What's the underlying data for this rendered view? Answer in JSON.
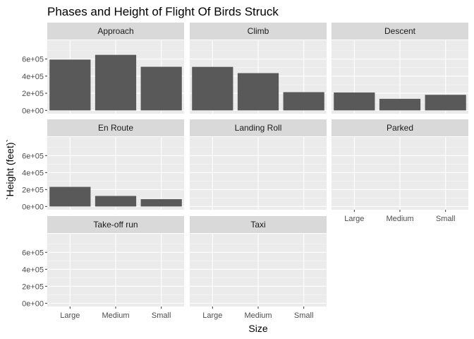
{
  "chart_data": {
    "type": "bar",
    "title": "Phases and Height of Flight Of Birds Struck",
    "xlabel": "Size",
    "ylabel": "`Height (feet)`",
    "categories": [
      "Large",
      "Medium",
      "Small"
    ],
    "ylim": [
      0,
      780000
    ],
    "y_ticks": [
      0,
      200000,
      400000,
      600000
    ],
    "y_tick_labels": [
      "0e+00",
      "2e+05",
      "4e+05",
      "6e+05"
    ],
    "facet_layout": "3 columns x 3 rows, facet_wrap with free x axis",
    "grid": true,
    "colors": {
      "panel_background": "#ebebeb",
      "strip_background": "#d9d9d9",
      "bar_fill": "#595959",
      "grid_major": "#ffffff",
      "grid_minor": "#f5f5f5"
    },
    "facets": [
      {
        "name": "Approach",
        "values": [
          593000,
          648000,
          509000
        ]
      },
      {
        "name": "Climb",
        "values": [
          508000,
          435000,
          213000
        ]
      },
      {
        "name": "Descent",
        "values": [
          209000,
          135000,
          182000
        ]
      },
      {
        "name": "En Route",
        "values": [
          231000,
          124000,
          86000
        ]
      },
      {
        "name": "Landing Roll",
        "values": [
          0,
          0,
          0
        ]
      },
      {
        "name": "Parked",
        "values": [
          0,
          0,
          0
        ]
      },
      {
        "name": "Take-off run",
        "values": [
          0,
          0,
          0
        ]
      },
      {
        "name": "Taxi",
        "values": [
          0,
          0,
          0
        ]
      }
    ]
  }
}
